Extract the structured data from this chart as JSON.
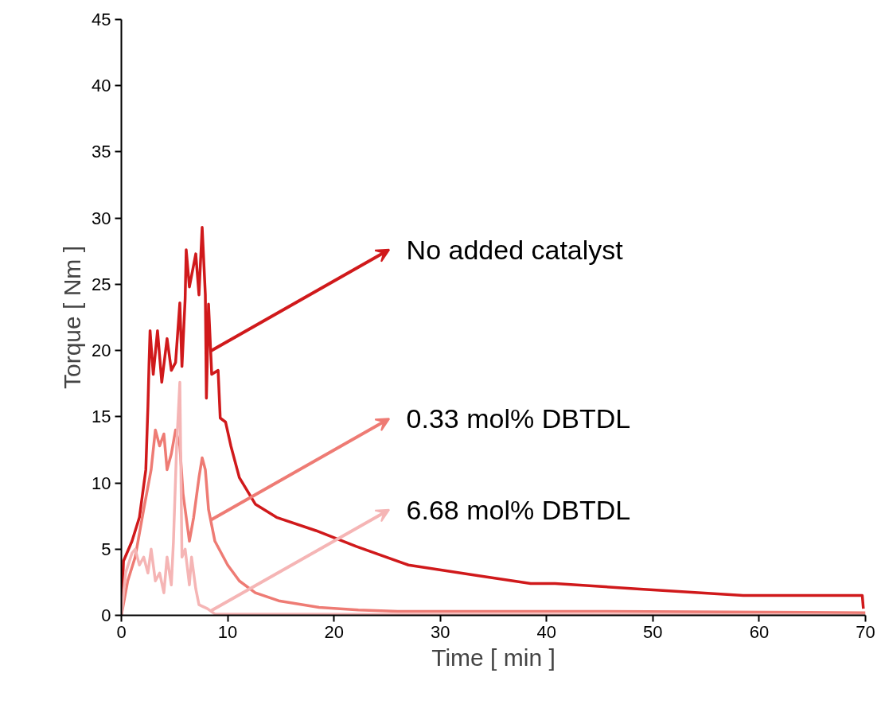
{
  "chart_data": {
    "type": "line",
    "xlabel": "Time [ min ]",
    "ylabel": "Torque [ Nm ]",
    "xlim": [
      0,
      70
    ],
    "ylim": [
      0,
      45
    ],
    "xticks": [
      0,
      10,
      20,
      30,
      40,
      50,
      60,
      70
    ],
    "yticks": [
      0,
      5,
      10,
      15,
      20,
      25,
      30,
      35,
      40,
      45
    ],
    "grid": false,
    "legend": "right",
    "marker": "none",
    "line_style": "solid",
    "series": [
      {
        "name": "No added catalyst",
        "color": "#d0191b",
        "x": [
          0,
          0.2,
          1.0,
          1.7,
          2.3,
          2.5,
          2.6,
          2.7,
          3.0,
          3.4,
          3.8,
          4.3,
          4.7,
          5.1,
          5.5,
          5.7,
          6.0,
          6.1,
          6.4,
          7.0,
          7.3,
          7.6,
          7.9,
          8.0,
          8.2,
          8.5,
          9.1,
          9.3,
          9.8,
          10.3,
          11.1,
          12.6,
          14.6,
          18.3,
          22.1,
          27,
          33.5,
          38.5,
          40.8,
          48.5,
          58.5,
          69.7,
          69.8
        ],
        "values": [
          0,
          4.1,
          5.6,
          7.4,
          11,
          15.8,
          18.9,
          21.5,
          18.2,
          21.5,
          17.6,
          20.9,
          18.5,
          19.1,
          23.6,
          18.8,
          23.9,
          27.6,
          24.8,
          27.3,
          24.2,
          29.3,
          24.2,
          16.4,
          23.5,
          18.2,
          18.5,
          14.9,
          14.6,
          12.8,
          10.4,
          8.4,
          7.4,
          6.4,
          5.2,
          3.8,
          3.0,
          2.4,
          2.4,
          2.0,
          1.5,
          1.5,
          0.5
        ]
      },
      {
        "name": "0.33 mol% DBTDL",
        "color": "#ee7b74",
        "x": [
          0,
          0.6,
          1.3,
          2.1,
          2.8,
          3.2,
          3.6,
          4.0,
          4.3,
          4.7,
          5.1,
          5.5,
          5.8,
          6.4,
          6.8,
          7.3,
          7.6,
          7.9,
          8.2,
          8.8,
          10.0,
          11.1,
          12.6,
          14.8,
          18.6,
          22.3,
          26,
          45,
          70
        ],
        "values": [
          0,
          2.6,
          4.4,
          8.0,
          11,
          14.0,
          12.8,
          13.7,
          11,
          12.2,
          14.0,
          12.8,
          9.2,
          5.6,
          7.4,
          10.4,
          11.9,
          11,
          8.0,
          5.6,
          3.8,
          2.6,
          1.7,
          1.1,
          0.6,
          0.4,
          0.3,
          0.3,
          0.2
        ]
      },
      {
        "name": "6.68 mol% DBTDL",
        "color": "#f5b5b5",
        "x": [
          0,
          0.4,
          1.0,
          1.3,
          1.7,
          2.1,
          2.5,
          2.8,
          3.2,
          3.6,
          4.0,
          4.3,
          4.7,
          4.9,
          5.2,
          5.5,
          5.7,
          6.0,
          6.4,
          6.6,
          7.0,
          7.3,
          8.1,
          8.8,
          70
        ],
        "values": [
          0,
          3.2,
          4.7,
          5.0,
          3.8,
          4.4,
          3.2,
          5.0,
          2.6,
          3.2,
          1.7,
          4.4,
          2.3,
          5.6,
          12.8,
          17.6,
          4.4,
          5.0,
          2.3,
          4.4,
          2.0,
          0.8,
          0.5,
          0.1,
          0
        ]
      }
    ]
  }
}
